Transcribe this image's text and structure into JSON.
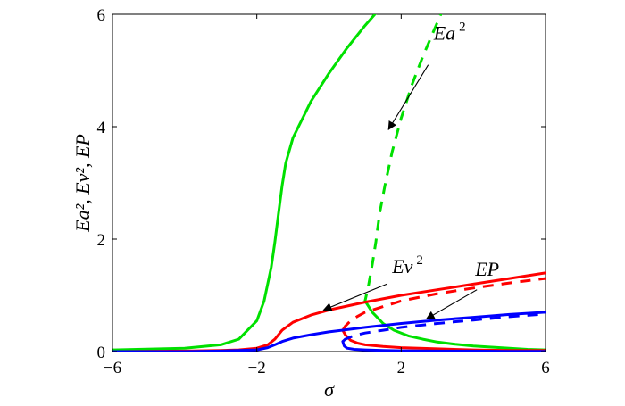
{
  "chart_data": {
    "type": "line",
    "title": "",
    "xlabel": "σ",
    "ylabel": "Ea², Ev², EP",
    "xlim": [
      -6,
      6
    ],
    "ylim": [
      0,
      6
    ],
    "xticks": [
      -6,
      -2,
      2,
      6
    ],
    "yticks": [
      0,
      2,
      4,
      6
    ],
    "grid": false,
    "legend": "none",
    "series": [
      {
        "color": "#00e000",
        "dash": false,
        "x": [
          -6,
          -4,
          -3,
          -2.5,
          -2,
          -1.8,
          -1.6,
          -1.5,
          -1.4,
          -1.3,
          -1.2,
          -1.0,
          -0.5,
          0,
          0.5,
          1,
          1.3,
          1.5
        ],
        "y": [
          0.03,
          0.06,
          0.12,
          0.22,
          0.55,
          0.9,
          1.5,
          1.95,
          2.45,
          2.95,
          3.35,
          3.8,
          4.45,
          4.95,
          5.4,
          5.8,
          6.02,
          6.15
        ]
      },
      {
        "color": "#00e000",
        "dash": true,
        "x": [
          3.2,
          2.9,
          2.6,
          2.3,
          2.0,
          1.75,
          1.55,
          1.4,
          1.3,
          1.2,
          1.1,
          1.0
        ],
        "y": [
          6.15,
          5.7,
          5.25,
          4.75,
          4.15,
          3.55,
          2.95,
          2.45,
          1.95,
          1.55,
          1.2,
          0.9
        ]
      },
      {
        "color": "#00e000",
        "dash": false,
        "x": [
          1.0,
          1.2,
          1.5,
          1.8,
          2.2,
          2.6,
          3.0,
          3.5,
          4.0,
          4.5,
          5.0,
          5.5,
          6.0
        ],
        "y": [
          0.9,
          0.7,
          0.5,
          0.38,
          0.28,
          0.22,
          0.17,
          0.13,
          0.1,
          0.08,
          0.06,
          0.04,
          0.03
        ]
      },
      {
        "color": "#ff0000",
        "dash": false,
        "x": [
          -6,
          -4,
          -3,
          -2.5,
          -2,
          -1.7,
          -1.5,
          -1.3,
          -1,
          -0.5,
          0,
          1,
          2,
          3,
          4,
          5,
          6
        ],
        "y": [
          0.0,
          0.01,
          0.02,
          0.03,
          0.06,
          0.12,
          0.22,
          0.38,
          0.52,
          0.65,
          0.74,
          0.88,
          1.0,
          1.1,
          1.2,
          1.3,
          1.4
        ]
      },
      {
        "color": "#ff0000",
        "dash": true,
        "x": [
          0.38,
          0.45,
          0.6,
          0.8,
          1,
          1.5,
          2,
          3,
          4,
          5,
          6
        ],
        "y": [
          0.38,
          0.45,
          0.55,
          0.63,
          0.7,
          0.8,
          0.9,
          1.03,
          1.13,
          1.22,
          1.3
        ]
      },
      {
        "color": "#ff0000",
        "dash": false,
        "x": [
          0.38,
          0.45,
          0.6,
          0.8,
          1,
          1.5,
          2,
          3,
          4,
          5,
          6
        ],
        "y": [
          0.38,
          0.3,
          0.2,
          0.15,
          0.12,
          0.09,
          0.07,
          0.05,
          0.03,
          0.02,
          0.02
        ]
      },
      {
        "color": "#0000ff",
        "dash": false,
        "x": [
          -6,
          -4,
          -3,
          -2,
          -1.7,
          -1.5,
          -1.3,
          -1,
          -0.5,
          0,
          1,
          2,
          3,
          4,
          5,
          6
        ],
        "y": [
          0.0,
          0.0,
          0.01,
          0.03,
          0.07,
          0.12,
          0.18,
          0.24,
          0.3,
          0.35,
          0.43,
          0.5,
          0.56,
          0.61,
          0.66,
          0.7
        ]
      },
      {
        "color": "#0000ff",
        "dash": true,
        "x": [
          0.38,
          0.45,
          0.6,
          0.8,
          1,
          1.5,
          2,
          3,
          4,
          5,
          6
        ],
        "y": [
          0.18,
          0.22,
          0.26,
          0.3,
          0.33,
          0.38,
          0.43,
          0.5,
          0.56,
          0.62,
          0.67
        ]
      },
      {
        "color": "#0000ff",
        "dash": false,
        "x": [
          0.38,
          0.42,
          0.5,
          0.7,
          1,
          1.5,
          2,
          3,
          4,
          5,
          6
        ],
        "y": [
          0.18,
          0.1,
          0.06,
          0.04,
          0.03,
          0.02,
          0.015,
          0.01,
          0.01,
          0.005,
          0.005
        ]
      }
    ],
    "annotations": [
      {
        "base": "Ea",
        "sup": "2",
        "text_x": 2.9,
        "text_y": 5.55,
        "arrow_from": [
          2.75,
          5.1
        ],
        "arrow_to": [
          1.65,
          3.95
        ]
      },
      {
        "base": "Ev",
        "sup": "2",
        "text_x": 1.75,
        "text_y": 1.4,
        "arrow_from": [
          1.6,
          1.2
        ],
        "arrow_to": [
          -0.15,
          0.74
        ]
      },
      {
        "base": "EP",
        "sup": "",
        "text_x": 4.05,
        "text_y": 1.35,
        "arrow_from": [
          4.1,
          1.1
        ],
        "arrow_to": [
          2.7,
          0.58
        ]
      }
    ]
  }
}
